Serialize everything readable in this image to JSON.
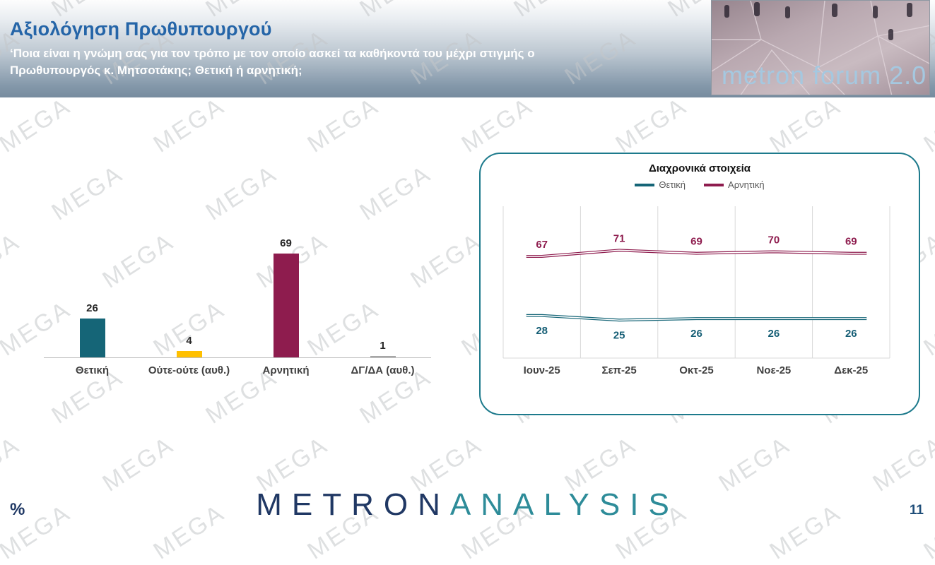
{
  "watermark": "MEGA",
  "header": {
    "title": "Αξιολόγηση Πρωθυπουργού",
    "subtitle_line1": "‘Ποια είναι η γνώμη σας για τον τρόπο με τον οποίο ασκεί τα καθήκοντά του μέχρι στιγμής ο",
    "subtitle_line2": "Πρωθυπουργός κ. Μητσοτάκης; Θετική ή αρνητική;",
    "logo_text": "metron forum 2.0"
  },
  "chart_data": [
    {
      "type": "bar",
      "categories": [
        "Θετική",
        "Ούτε-ούτε (αυθ.)",
        "Αρνητική",
        "ΔΓ/ΔΑ (αυθ.)"
      ],
      "values": [
        26,
        4,
        69,
        1
      ],
      "colors": [
        "#156577",
        "#FFC000",
        "#8E1C4E",
        "#A6A6A6"
      ],
      "label_colors": [
        "#262626",
        "#262626",
        "#262626",
        "#262626"
      ],
      "ylim": [
        0,
        100
      ],
      "grid": false
    },
    {
      "type": "line",
      "title": "Διαχρονικά στοιχεία",
      "categories": [
        "Ιουν-25",
        "Σεπ-25",
        "Οκτ-25",
        "Νοε-25",
        "Δεκ-25"
      ],
      "series": [
        {
          "name": "Θετική",
          "color": "#156577",
          "label_color": "#155e75",
          "values": [
            28,
            25,
            26,
            26,
            26
          ],
          "labels_position": "below"
        },
        {
          "name": "Αρνητική",
          "color": "#8E1C4E",
          "label_color": "#8E1C4E",
          "values": [
            67,
            71,
            69,
            70,
            69
          ],
          "labels_position": "above"
        }
      ],
      "ylim": [
        0,
        100
      ],
      "grid": "vertical",
      "legend_position": "top"
    }
  ],
  "footer": {
    "percent_label": "%",
    "logo_metron": "METRON",
    "logo_analysis": "ANALYSIS",
    "page_number": "11"
  }
}
